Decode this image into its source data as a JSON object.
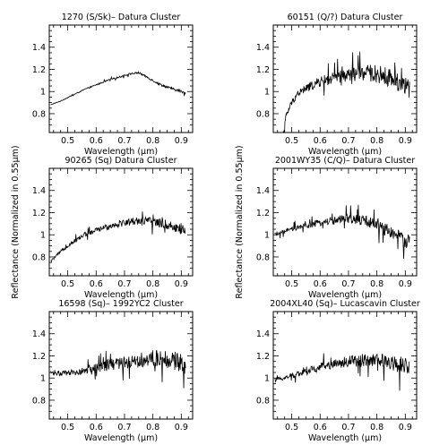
{
  "figure": {
    "ylabel_left": "Reflectance (Normalized in 0.55μm)",
    "ylabel_right": "Reflectance (Normalized in 0.55μm)"
  },
  "chart_data": [
    {
      "type": "line",
      "title": "1270 (S/Sk)– Datura Cluster",
      "xlabel": "Wavelength (μm)",
      "ylabel": "",
      "xlim": [
        0.435,
        0.94
      ],
      "ylim": [
        0.63,
        1.6
      ],
      "xticks": [
        "0.5",
        "0.6",
        "0.7",
        "0.8",
        "0.9"
      ],
      "yticks": [
        "0.8",
        "1",
        "1.2",
        "1.4"
      ],
      "noise": 0.012,
      "x_range": [
        0.44,
        0.915
      ],
      "series": [
        {
          "x": [
            0.44,
            0.48,
            0.52,
            0.56,
            0.6,
            0.64,
            0.68,
            0.72,
            0.75,
            0.78,
            0.82,
            0.86,
            0.9,
            0.915
          ],
          "y": [
            0.88,
            0.92,
            0.97,
            1.02,
            1.06,
            1.1,
            1.13,
            1.16,
            1.17,
            1.13,
            1.07,
            1.03,
            1.0,
            0.99
          ]
        }
      ]
    },
    {
      "type": "line",
      "title": "60151 (Q/?) Datura Cluster",
      "xlabel": "Wavelength (μm)",
      "ylabel": "",
      "xlim": [
        0.435,
        0.94
      ],
      "ylim": [
        0.63,
        1.6
      ],
      "xticks": [
        "0.5",
        "0.6",
        "0.7",
        "0.8",
        "0.9"
      ],
      "yticks": [
        "0.8",
        "1",
        "1.2",
        "1.4"
      ],
      "noise": 0.1,
      "x_range": [
        0.47,
        0.915
      ],
      "series": [
        {
          "x": [
            0.47,
            0.48,
            0.5,
            0.52,
            0.56,
            0.6,
            0.65,
            0.7,
            0.75,
            0.8,
            0.85,
            0.9,
            0.915
          ],
          "y": [
            0.6,
            0.78,
            0.9,
            0.98,
            1.04,
            1.09,
            1.12,
            1.15,
            1.17,
            1.16,
            1.12,
            1.06,
            1.0
          ]
        }
      ]
    },
    {
      "type": "line",
      "title": "90265 (Sq) Datura Cluster",
      "xlabel": "Wavelength (μm)",
      "ylabel": "",
      "xlim": [
        0.435,
        0.94
      ],
      "ylim": [
        0.63,
        1.6
      ],
      "xticks": [
        "0.5",
        "0.6",
        "0.7",
        "0.8",
        "0.9"
      ],
      "yticks": [
        "0.8",
        "1",
        "1.2",
        "1.4"
      ],
      "noise": 0.05,
      "x_range": [
        0.44,
        0.915
      ],
      "series": [
        {
          "x": [
            0.44,
            0.48,
            0.52,
            0.56,
            0.6,
            0.65,
            0.7,
            0.75,
            0.8,
            0.85,
            0.9,
            0.915
          ],
          "y": [
            0.76,
            0.86,
            0.94,
            1.0,
            1.04,
            1.08,
            1.11,
            1.13,
            1.12,
            1.09,
            1.05,
            1.03
          ]
        }
      ]
    },
    {
      "type": "line",
      "title": "2001WY35 (C/Q)– Datura Cluster",
      "xlabel": "Wavelength (μm)",
      "ylabel": "",
      "xlim": [
        0.435,
        0.94
      ],
      "ylim": [
        0.63,
        1.6
      ],
      "xticks": [
        "0.5",
        "0.6",
        "0.7",
        "0.8",
        "0.9"
      ],
      "yticks": [
        "0.8",
        "1",
        "1.2",
        "1.4"
      ],
      "noise": 0.07,
      "x_range": [
        0.44,
        0.915
      ],
      "series": [
        {
          "x": [
            0.44,
            0.5,
            0.55,
            0.6,
            0.65,
            0.7,
            0.75,
            0.8,
            0.85,
            0.9,
            0.915
          ],
          "y": [
            1.0,
            1.05,
            1.08,
            1.11,
            1.13,
            1.14,
            1.13,
            1.1,
            1.02,
            0.95,
            0.93
          ]
        }
      ]
    },
    {
      "type": "line",
      "title": "16598 (Sq)– 1992YC2 Cluster",
      "xlabel": "Wavelength (μm)",
      "ylabel": "",
      "xlim": [
        0.435,
        0.94
      ],
      "ylim": [
        0.63,
        1.6
      ],
      "xticks": [
        "0.5",
        "0.6",
        "0.7",
        "0.8",
        "0.9"
      ],
      "yticks": [
        "0.8",
        "1",
        "1.2",
        "1.4"
      ],
      "noise": 0.09,
      "x_range": [
        0.44,
        0.915
      ],
      "series": [
        {
          "x": [
            0.44,
            0.5,
            0.55,
            0.6,
            0.65,
            0.7,
            0.75,
            0.8,
            0.85,
            0.9,
            0.915
          ],
          "y": [
            1.05,
            1.04,
            1.06,
            1.09,
            1.12,
            1.14,
            1.16,
            1.18,
            1.17,
            1.14,
            1.12
          ]
        }
      ]
    },
    {
      "type": "line",
      "title": "2004XL40 (Sq)– Lucascavin Cluster",
      "xlabel": "Wavelength (μm)",
      "ylabel": "",
      "xlim": [
        0.435,
        0.94
      ],
      "ylim": [
        0.63,
        1.6
      ],
      "xticks": [
        "0.5",
        "0.6",
        "0.7",
        "0.8",
        "0.9"
      ],
      "yticks": [
        "0.8",
        "1",
        "1.2",
        "1.4"
      ],
      "noise": 0.08,
      "x_range": [
        0.44,
        0.915
      ],
      "series": [
        {
          "x": [
            0.44,
            0.5,
            0.55,
            0.6,
            0.65,
            0.7,
            0.75,
            0.8,
            0.85,
            0.9,
            0.915
          ],
          "y": [
            0.98,
            1.02,
            1.06,
            1.1,
            1.13,
            1.15,
            1.16,
            1.16,
            1.14,
            1.11,
            1.1
          ]
        }
      ]
    }
  ]
}
